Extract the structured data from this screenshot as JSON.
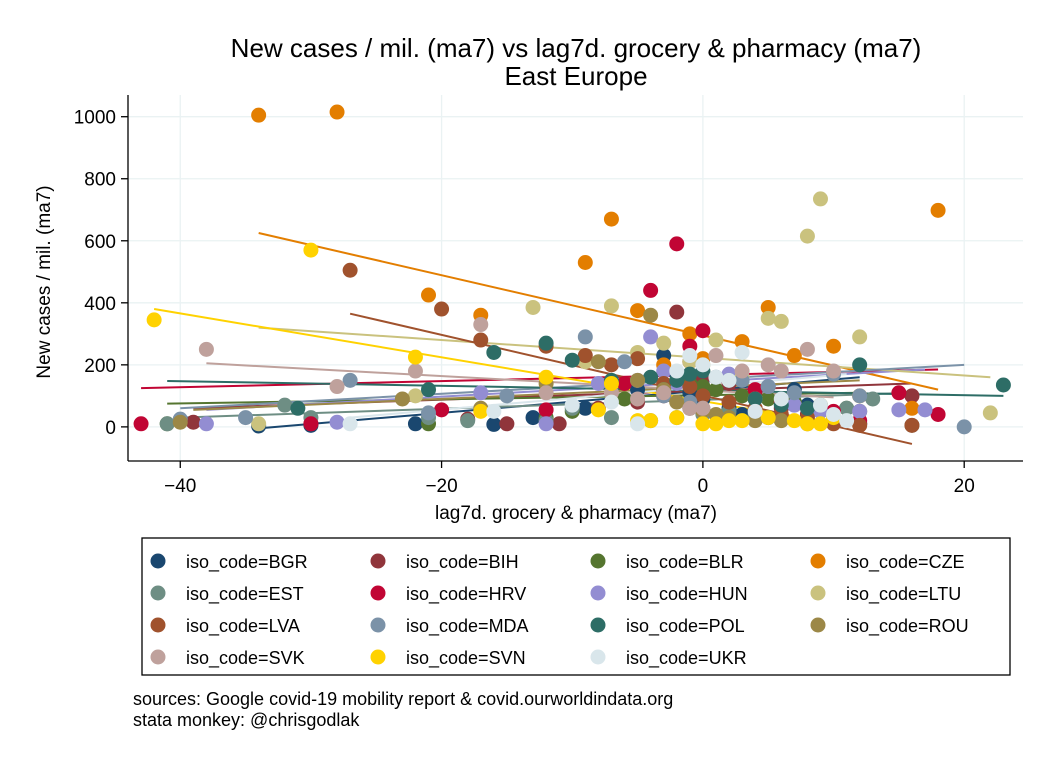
{
  "chart_data": {
    "type": "scatter",
    "title": "New cases / mil. (ma7) vs lag7d. grocery & pharmacy (ma7)",
    "subtitle": "East Europe",
    "xlabel": "lag7d. grocery & pharmacy (ma7)",
    "ylabel": "New cases / mil. (ma7)",
    "xlim": [
      -44,
      24.5
    ],
    "ylim": [
      -110,
      1070
    ],
    "xticks": [
      -40,
      -20,
      0,
      20
    ],
    "yticks": [
      0,
      200,
      400,
      600,
      800,
      1000
    ],
    "grid": true,
    "legend_position": "bottom",
    "series": [
      {
        "name": "iso_code=BGR",
        "color": "#1a476f",
        "points": [
          [
            -34,
            3
          ],
          [
            -30,
            5
          ],
          [
            -22,
            10
          ],
          [
            -16,
            8
          ],
          [
            -13,
            30
          ],
          [
            -9,
            60
          ],
          [
            -5,
            120
          ],
          [
            -3,
            230
          ],
          [
            -2,
            170
          ],
          [
            -1,
            110
          ],
          [
            0,
            90
          ],
          [
            2,
            60
          ],
          [
            3,
            40
          ],
          [
            5,
            30
          ],
          [
            7,
            120
          ],
          [
            8,
            70
          ],
          [
            9,
            50
          ],
          [
            10,
            20
          ],
          [
            12,
            10
          ]
        ],
        "fit": [
          [
            -34,
            -5
          ],
          [
            12,
            160
          ]
        ]
      },
      {
        "name": "iso_code=BIH",
        "color": "#90353b",
        "points": [
          [
            -39,
            15
          ],
          [
            -30,
            10
          ],
          [
            -18,
            25
          ],
          [
            -15,
            10
          ],
          [
            -11,
            10
          ],
          [
            -8,
            60
          ],
          [
            -5,
            80
          ],
          [
            -3,
            100
          ],
          [
            -2,
            370
          ],
          [
            -1,
            210
          ],
          [
            0,
            160
          ],
          [
            2,
            140
          ],
          [
            4,
            100
          ],
          [
            6,
            60
          ],
          [
            8,
            40
          ],
          [
            10,
            20
          ],
          [
            12,
            10
          ],
          [
            16,
            100
          ]
        ],
        "fit": [
          [
            -39,
            60
          ],
          [
            16,
            140
          ]
        ]
      },
      {
        "name": "iso_code=BLR",
        "color": "#55752f",
        "points": [
          [
            -41,
            10
          ],
          [
            -21,
            10
          ],
          [
            -12,
            30
          ],
          [
            -10,
            50
          ],
          [
            -6,
            90
          ],
          [
            -3,
            120
          ],
          [
            -1,
            140
          ],
          [
            0,
            130
          ],
          [
            1,
            120
          ],
          [
            3,
            100
          ],
          [
            5,
            90
          ],
          [
            7,
            80
          ],
          [
            9,
            70
          ],
          [
            11,
            60
          ],
          [
            12,
            50
          ]
        ],
        "fit": [
          [
            -41,
            75
          ],
          [
            12,
            110
          ]
        ]
      },
      {
        "name": "iso_code=CZE",
        "color": "#e37e00",
        "points": [
          [
            -34,
            1005
          ],
          [
            -28,
            1015
          ],
          [
            -21,
            425
          ],
          [
            -17,
            360
          ],
          [
            -9,
            530
          ],
          [
            -7,
            670
          ],
          [
            -5,
            375
          ],
          [
            -3,
            200
          ],
          [
            -1,
            300
          ],
          [
            0,
            220
          ],
          [
            3,
            275
          ],
          [
            5,
            385
          ],
          [
            7,
            230
          ],
          [
            10,
            260
          ],
          [
            12,
            100
          ],
          [
            16,
            60
          ],
          [
            18,
            698
          ]
        ],
        "fit": [
          [
            -34,
            625
          ],
          [
            18,
            120
          ]
        ]
      },
      {
        "name": "iso_code=EST",
        "color": "#6e8e84",
        "points": [
          [
            -41,
            10
          ],
          [
            -32,
            70
          ],
          [
            -30,
            30
          ],
          [
            -21,
            30
          ],
          [
            -18,
            20
          ],
          [
            -12,
            20
          ],
          [
            -10,
            60
          ],
          [
            -7,
            30
          ],
          [
            -4,
            20
          ],
          [
            -2,
            30
          ],
          [
            0,
            40
          ],
          [
            2,
            50
          ],
          [
            4,
            40
          ],
          [
            6,
            30
          ],
          [
            8,
            20
          ],
          [
            10,
            30
          ],
          [
            11,
            60
          ],
          [
            13,
            90
          ],
          [
            16,
            5
          ]
        ],
        "fit": [
          [
            -40,
            30
          ],
          [
            16,
            110
          ]
        ]
      },
      {
        "name": "iso_code=HRV",
        "color": "#c10534",
        "points": [
          [
            -43,
            10
          ],
          [
            -30,
            10
          ],
          [
            -20,
            55
          ],
          [
            -12,
            55
          ],
          [
            -6,
            140
          ],
          [
            -4,
            440
          ],
          [
            -2,
            590
          ],
          [
            -1,
            260
          ],
          [
            0,
            310
          ],
          [
            2,
            160
          ],
          [
            4,
            120
          ],
          [
            6,
            80
          ],
          [
            10,
            50
          ],
          [
            12,
            20
          ],
          [
            15,
            110
          ],
          [
            18,
            40
          ]
        ],
        "fit": [
          [
            -43,
            125
          ],
          [
            18,
            185
          ]
        ]
      },
      {
        "name": "iso_code=HUN",
        "color": "#938dd2",
        "points": [
          [
            -38,
            10
          ],
          [
            -28,
            15
          ],
          [
            -17,
            110
          ],
          [
            -12,
            10
          ],
          [
            -8,
            140
          ],
          [
            -5,
            150
          ],
          [
            -4,
            290
          ],
          [
            -3,
            180
          ],
          [
            -2,
            140
          ],
          [
            -1,
            60
          ],
          [
            0,
            50
          ],
          [
            2,
            170
          ],
          [
            3,
            160
          ],
          [
            5,
            130
          ],
          [
            7,
            70
          ],
          [
            9,
            50
          ],
          [
            12,
            50
          ],
          [
            15,
            55
          ],
          [
            17,
            55
          ]
        ],
        "fit": [
          [
            -38,
            55
          ],
          [
            17,
            185
          ]
        ]
      },
      {
        "name": "iso_code=LTU",
        "color": "#cac27e",
        "points": [
          [
            -34,
            10
          ],
          [
            -22,
            100
          ],
          [
            -13,
            385
          ],
          [
            -9,
            210
          ],
          [
            -7,
            390
          ],
          [
            -5,
            240
          ],
          [
            -3,
            270
          ],
          [
            -1,
            210
          ],
          [
            0,
            200
          ],
          [
            1,
            280
          ],
          [
            3,
            160
          ],
          [
            4,
            90
          ],
          [
            5,
            350
          ],
          [
            6,
            340
          ],
          [
            8,
            615
          ],
          [
            9,
            735
          ],
          [
            12,
            290
          ],
          [
            22,
            45
          ]
        ],
        "fit": [
          [
            -34,
            320
          ],
          [
            22,
            160
          ]
        ]
      },
      {
        "name": "iso_code=LVA",
        "color": "#a0522d",
        "points": [
          [
            -27,
            505
          ],
          [
            -20,
            380
          ],
          [
            -17,
            280
          ],
          [
            -12,
            260
          ],
          [
            -9,
            230
          ],
          [
            -7,
            200
          ],
          [
            -5,
            220
          ],
          [
            -3,
            140
          ],
          [
            -1,
            130
          ],
          [
            0,
            100
          ],
          [
            2,
            80
          ],
          [
            4,
            60
          ],
          [
            6,
            40
          ],
          [
            8,
            30
          ],
          [
            10,
            10
          ],
          [
            12,
            5
          ],
          [
            16,
            5
          ]
        ],
        "fit": [
          [
            -27,
            365
          ],
          [
            16,
            -55
          ]
        ]
      },
      {
        "name": "iso_code=MDA",
        "color": "#7b92a8",
        "points": [
          [
            -40,
            25
          ],
          [
            -35,
            30
          ],
          [
            -27,
            150
          ],
          [
            -21,
            45
          ],
          [
            -15,
            100
          ],
          [
            -9,
            290
          ],
          [
            -6,
            210
          ],
          [
            -3,
            100
          ],
          [
            -1,
            80
          ],
          [
            0,
            60
          ],
          [
            1,
            160
          ],
          [
            3,
            150
          ],
          [
            5,
            130
          ],
          [
            7,
            110
          ],
          [
            10,
            170
          ],
          [
            12,
            100
          ],
          [
            20,
            0
          ]
        ],
        "fit": [
          [
            -40,
            60
          ],
          [
            20,
            200
          ]
        ]
      },
      {
        "name": "iso_code=POL",
        "color": "#2d6d66",
        "points": [
          [
            -31,
            60
          ],
          [
            -21,
            120
          ],
          [
            -16,
            240
          ],
          [
            -12,
            270
          ],
          [
            -10,
            215
          ],
          [
            -7,
            150
          ],
          [
            -4,
            160
          ],
          [
            -3,
            120
          ],
          [
            -2,
            150
          ],
          [
            -1,
            170
          ],
          [
            0,
            180
          ],
          [
            2,
            150
          ],
          [
            4,
            90
          ],
          [
            6,
            70
          ],
          [
            8,
            60
          ],
          [
            12,
            200
          ],
          [
            23,
            135
          ]
        ],
        "fit": [
          [
            -41,
            148
          ],
          [
            23,
            100
          ]
        ]
      },
      {
        "name": "iso_code=ROU",
        "color": "#9c8847",
        "points": [
          [
            -40,
            15
          ],
          [
            -23,
            90
          ],
          [
            -17,
            60
          ],
          [
            -12,
            140
          ],
          [
            -8,
            210
          ],
          [
            -5,
            150
          ],
          [
            -4,
            360
          ],
          [
            -3,
            120
          ],
          [
            -2,
            80
          ],
          [
            -1,
            60
          ],
          [
            0,
            50
          ],
          [
            1,
            40
          ],
          [
            2,
            30
          ],
          [
            4,
            20
          ],
          [
            6,
            20
          ],
          [
            8,
            10
          ]
        ],
        "fit": [
          [
            -39,
            55
          ],
          [
            12,
            150
          ]
        ]
      },
      {
        "name": "iso_code=SVK",
        "color": "#bfa19c",
        "points": [
          [
            -38,
            250
          ],
          [
            -28,
            130
          ],
          [
            -22,
            180
          ],
          [
            -17,
            330
          ],
          [
            -12,
            110
          ],
          [
            -7,
            110
          ],
          [
            -5,
            90
          ],
          [
            -3,
            110
          ],
          [
            -1,
            60
          ],
          [
            0,
            60
          ],
          [
            1,
            230
          ],
          [
            3,
            180
          ],
          [
            5,
            200
          ],
          [
            6,
            180
          ],
          [
            8,
            250
          ],
          [
            10,
            180
          ]
        ],
        "fit": [
          [
            -38,
            205
          ],
          [
            10,
            95
          ]
        ]
      },
      {
        "name": "iso_code=SVN",
        "color": "#ffd200",
        "points": [
          [
            -42,
            345
          ],
          [
            -30,
            570
          ],
          [
            -22,
            225
          ],
          [
            -17,
            50
          ],
          [
            -12,
            160
          ],
          [
            -8,
            55
          ],
          [
            -7,
            140
          ],
          [
            -5,
            20
          ],
          [
            -4,
            20
          ],
          [
            -2,
            30
          ],
          [
            0,
            10
          ],
          [
            1,
            10
          ],
          [
            2,
            20
          ],
          [
            3,
            20
          ],
          [
            5,
            30
          ],
          [
            7,
            20
          ],
          [
            8,
            10
          ],
          [
            9,
            10
          ],
          [
            10,
            30
          ]
        ],
        "fit": [
          [
            -42,
            380
          ],
          [
            11,
            5
          ]
        ]
      },
      {
        "name": "iso_code=UKR",
        "color": "#d9e6eb",
        "points": [
          [
            -27,
            10
          ],
          [
            -16,
            50
          ],
          [
            -10,
            70
          ],
          [
            -7,
            80
          ],
          [
            -5,
            10
          ],
          [
            -2,
            180
          ],
          [
            -1,
            230
          ],
          [
            0,
            200
          ],
          [
            1,
            160
          ],
          [
            2,
            150
          ],
          [
            3,
            240
          ],
          [
            4,
            50
          ],
          [
            6,
            90
          ],
          [
            9,
            70
          ],
          [
            10,
            40
          ],
          [
            11,
            20
          ]
        ],
        "fit": [
          [
            -27,
            30
          ],
          [
            11,
            170
          ]
        ]
      }
    ]
  },
  "notes": {
    "line1": "sources: Google covid-19 mobility report & covid.ourworldindata.org",
    "line2": "stata monkey: @chrisgodlak"
  }
}
